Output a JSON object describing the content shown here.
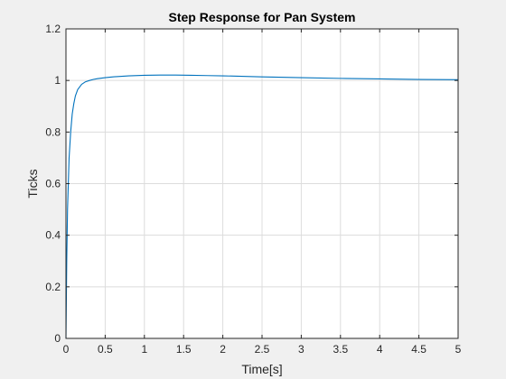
{
  "chart_data": {
    "type": "line",
    "title": "Step Response for Pan System",
    "xlabel": "Time[s]",
    "ylabel": "Ticks",
    "xlim": [
      0,
      5
    ],
    "ylim": [
      0,
      1.2
    ],
    "xticks": [
      0,
      0.5,
      1,
      1.5,
      2,
      2.5,
      3,
      3.5,
      4,
      4.5,
      5
    ],
    "xtick_labels": [
      "0",
      "0.5",
      "1",
      "1.5",
      "2",
      "2.5",
      "3",
      "3.5",
      "4",
      "4.5",
      "5"
    ],
    "yticks": [
      0,
      0.2,
      0.4,
      0.6,
      0.8,
      1,
      1.2
    ],
    "ytick_labels": [
      "0",
      "0.2",
      "0.4",
      "0.6",
      "0.8",
      "1",
      "1.2"
    ],
    "grid": true,
    "series": [
      {
        "color": "#0072bd",
        "x": [
          0,
          0.01,
          0.02,
          0.04,
          0.06,
          0.08,
          0.1,
          0.12,
          0.15,
          0.2,
          0.25,
          0.3,
          0.35,
          0.4,
          0.5,
          0.6,
          0.8,
          1,
          1.2,
          1.4,
          1.6,
          1.8,
          2,
          2.5,
          3,
          3.5,
          4,
          4.5,
          5
        ],
        "y": [
          0,
          0.3,
          0.5,
          0.7,
          0.8,
          0.87,
          0.91,
          0.94,
          0.965,
          0.985,
          0.995,
          1.0,
          1.004,
          1.007,
          1.011,
          1.014,
          1.018,
          1.02,
          1.021,
          1.021,
          1.02,
          1.019,
          1.018,
          1.014,
          1.011,
          1.008,
          1.006,
          1.004,
          1.003
        ]
      }
    ]
  }
}
